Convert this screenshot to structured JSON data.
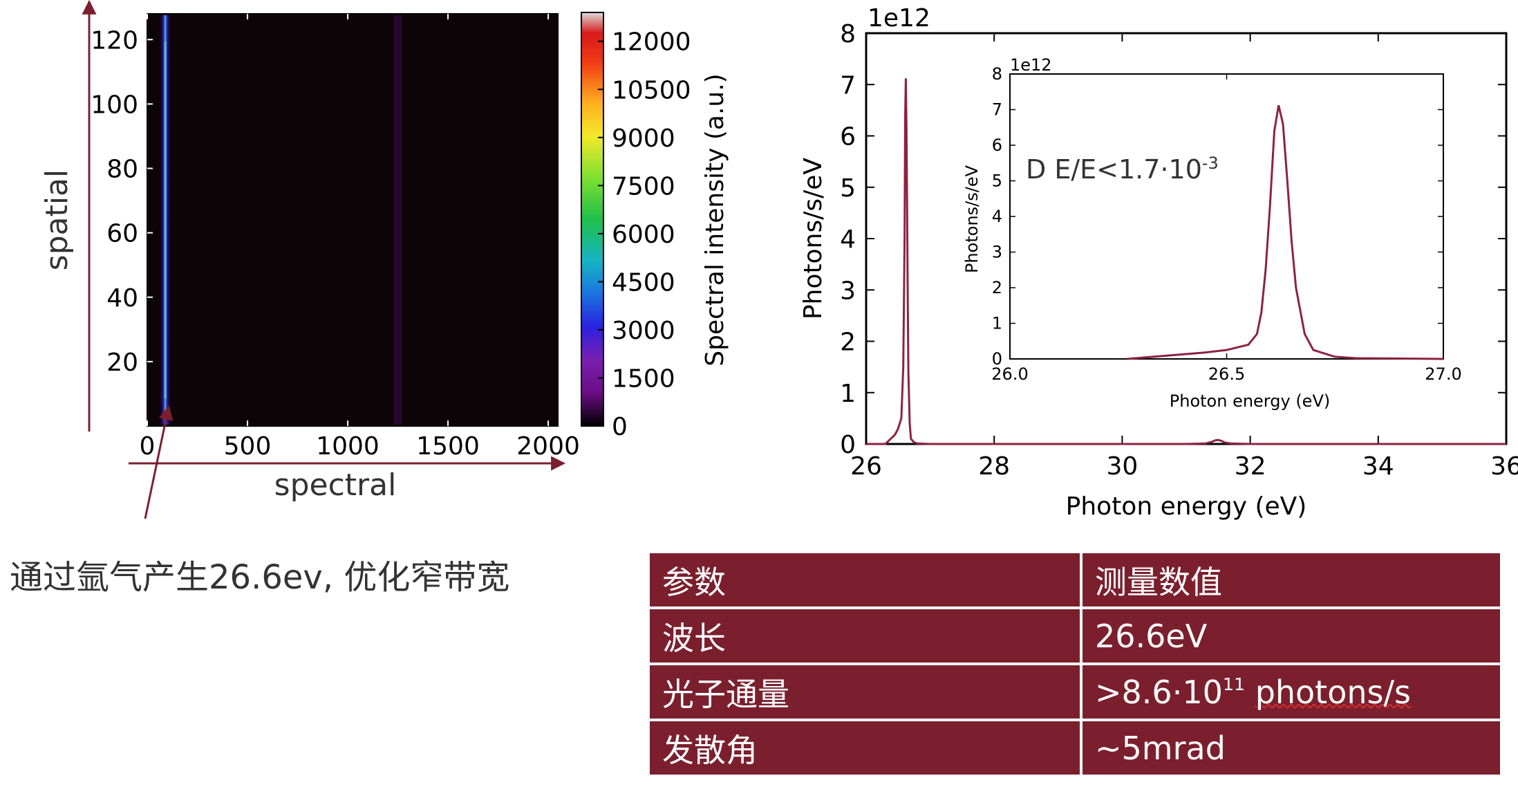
{
  "heatmap": {
    "type": "heatmap",
    "xlabel": "spectral",
    "ylabel": "spatial",
    "xticks": [
      "0",
      "500",
      "1000",
      "1500",
      "2000"
    ],
    "xtick_values": [
      0,
      500,
      1000,
      1500,
      2000
    ],
    "xlim": [
      0,
      2048
    ],
    "yticks": [
      "20",
      "40",
      "60",
      "80",
      "100",
      "120"
    ],
    "ytick_values": [
      20,
      40,
      60,
      80,
      100,
      120
    ],
    "ylim": [
      0,
      128
    ],
    "colorbar_label": "Spectral intensity (a.u.)",
    "colorbar_ticks": [
      "0",
      "1500",
      "3000",
      "4500",
      "6000",
      "7500",
      "9000",
      "10500",
      "12000"
    ],
    "colorbar_values": [
      0,
      1500,
      3000,
      4500,
      6000,
      7500,
      9000,
      10500,
      12000
    ],
    "colorbar_range": [
      0,
      12900
    ],
    "lines": [
      {
        "x": 90,
        "peak": 7500
      },
      {
        "x": 1250,
        "peak": 900
      }
    ]
  },
  "chart_data": {
    "type": "line",
    "xlabel": "Photon energy (eV)",
    "ylabel": "Photons/s/eV",
    "y_scale_label": "1e12",
    "xlim": [
      26,
      36
    ],
    "ylim": [
      0,
      8
    ],
    "xticks": [
      "26",
      "28",
      "30",
      "32",
      "34",
      "36"
    ],
    "xtick_values": [
      26,
      28,
      30,
      32,
      34,
      36
    ],
    "yticks": [
      "0",
      "1",
      "2",
      "3",
      "4",
      "5",
      "6",
      "7",
      "8"
    ],
    "ytick_values": [
      0,
      1,
      2,
      3,
      4,
      5,
      6,
      7,
      8
    ],
    "line_color": "#8b2340",
    "series": [
      {
        "x": [
          26.0,
          26.3,
          26.45,
          26.5,
          26.55,
          26.58,
          26.6,
          26.61,
          26.62,
          26.63,
          26.64,
          26.65,
          26.66,
          26.68,
          26.7,
          26.75,
          26.8,
          27.0,
          28.0,
          30.0,
          31.0,
          31.3,
          31.4,
          31.45,
          31.5,
          31.55,
          31.6,
          31.7,
          32.0,
          34.0,
          36.0
        ],
        "y": [
          0,
          0,
          0.18,
          0.3,
          0.5,
          1.5,
          4.0,
          6.4,
          7.12,
          6.2,
          4.5,
          2.8,
          1.4,
          0.4,
          0.1,
          0.03,
          0.01,
          0,
          0,
          0,
          0,
          0.01,
          0.04,
          0.07,
          0.08,
          0.06,
          0.03,
          0.01,
          0,
          0,
          0
        ]
      }
    ],
    "inset": {
      "xlabel": "Photon energy (eV)",
      "ylabel": "Photons/s/eV",
      "y_scale_label": "1e12",
      "xlim": [
        26.0,
        27.0
      ],
      "ylim": [
        0,
        8
      ],
      "xticks": [
        "26.0",
        "26.5",
        "27.0"
      ],
      "xtick_values": [
        26.0,
        26.5,
        27.0
      ],
      "yticks": [
        "0",
        "1",
        "2",
        "3",
        "4",
        "5",
        "6",
        "7",
        "8"
      ],
      "ytick_values": [
        0,
        1,
        2,
        3,
        4,
        5,
        6,
        7,
        8
      ],
      "annotation": {
        "text": "D E/E<1.7·10",
        "sup": "-3"
      },
      "series": [
        {
          "x": [
            26.27,
            26.35,
            26.45,
            26.5,
            26.55,
            26.57,
            26.58,
            26.59,
            26.6,
            26.61,
            26.62,
            26.63,
            26.64,
            26.65,
            26.66,
            26.68,
            26.7,
            26.75,
            26.8,
            27.0
          ],
          "y": [
            0,
            0.08,
            0.18,
            0.25,
            0.4,
            0.7,
            1.3,
            2.5,
            4.3,
            6.4,
            7.12,
            6.6,
            5.0,
            3.3,
            2.0,
            0.7,
            0.25,
            0.06,
            0.02,
            0
          ]
        }
      ]
    }
  },
  "caption": "通过氩气产生26.6ev, 优化窄带宽",
  "table": {
    "header": {
      "param": "参数",
      "value": "测量数值"
    },
    "rows": [
      {
        "param": "波长",
        "value": "26.6eV",
        "sup": "",
        "suffix": ""
      },
      {
        "param": "光子通量",
        "value": ">8.6·10",
        "sup": "11",
        "suffix": "photons/s"
      },
      {
        "param": "发散角",
        "value": "~5mrad",
        "sup": "",
        "suffix": ""
      }
    ]
  }
}
